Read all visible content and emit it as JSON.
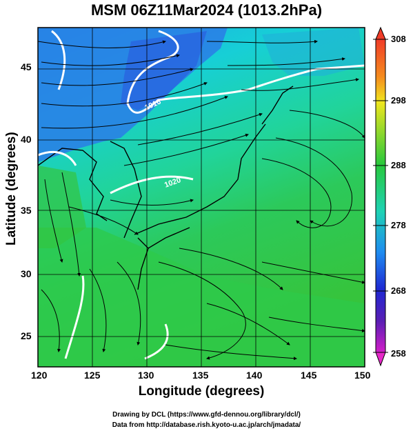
{
  "map": {
    "title": "MSM 06Z11Mar2024 (1013.2hPa)",
    "xlabel": "Longitude (degrees)",
    "ylabel": "Latitude  (degrees)",
    "lon_ticks": [
      "120",
      "125",
      "130",
      "135",
      "140",
      "145",
      "150"
    ],
    "lat_ticks": [
      "45",
      "40",
      "35",
      "30",
      "25"
    ],
    "isobar_labels": [
      "1016",
      "1020"
    ],
    "colorbar_ticks": [
      "308",
      "298",
      "288",
      "278",
      "268",
      "258"
    ],
    "colors": {
      "ocean_warm": "#2ec94a",
      "ocean_mid": "#19d6c4",
      "cold_land": "#1f6fe0",
      "isobar": "#ffffff",
      "streamline": "#000000"
    },
    "credits": [
      "Drawing by DCL (https://www.gfd-dennou.org/library/dcl/)",
      "Data from http://database.rish.kyoto-u.ac.jp/arch/jmadata/"
    ]
  },
  "chart_data": {
    "type": "heatmap",
    "title": "MSM 06Z11Mar2024 (1013.2hPa)",
    "xlabel": "Longitude (degrees)",
    "ylabel": "Latitude  (degrees)",
    "xlim": [
      120,
      150
    ],
    "ylim": [
      22.4,
      47.6
    ],
    "colorbar_range": [
      258,
      308
    ],
    "colorbar_ticks": [
      308,
      298,
      288,
      278,
      268,
      258
    ],
    "contour_labels": [
      1016,
      1020
    ]
  }
}
